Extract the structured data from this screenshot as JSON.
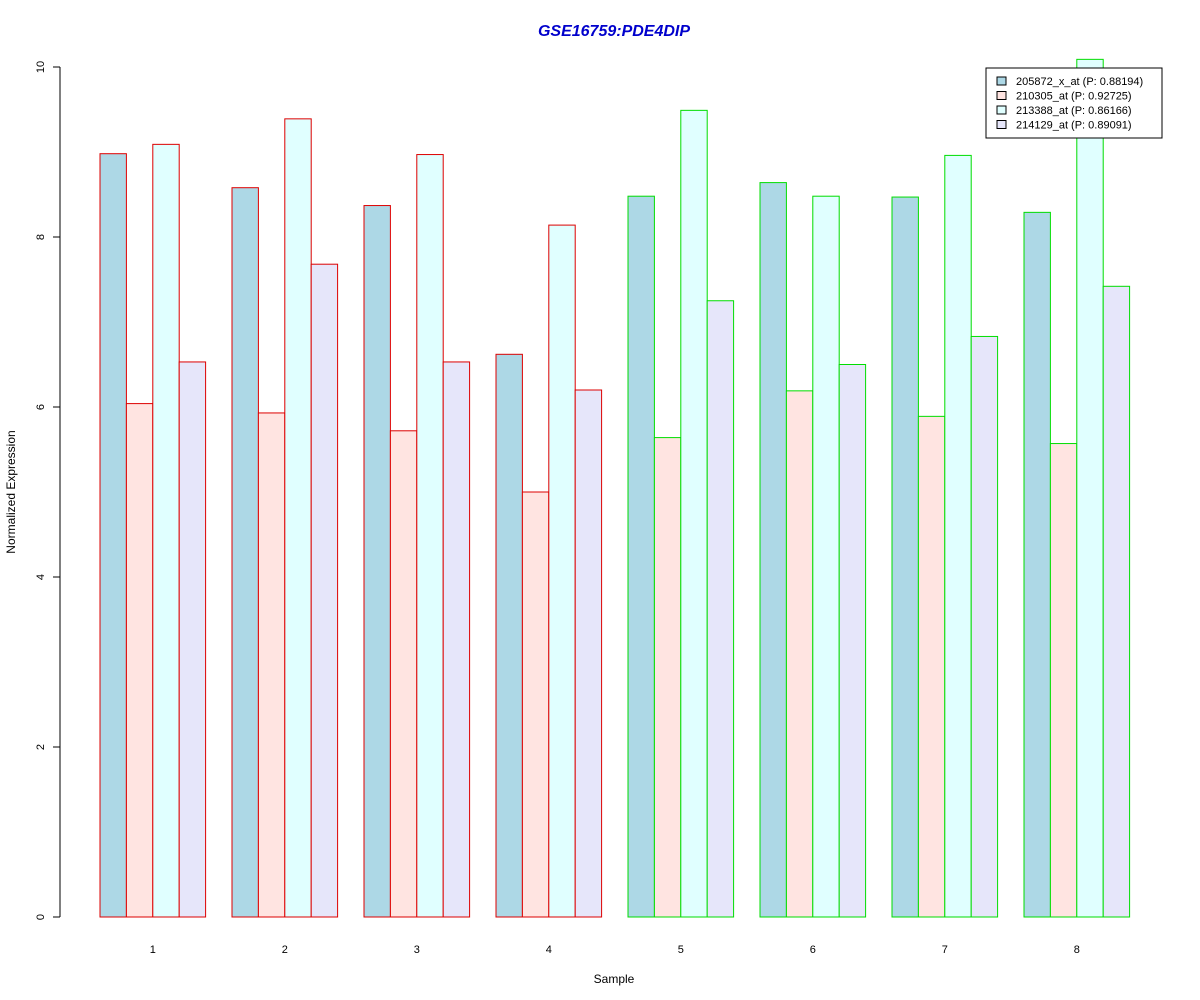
{
  "chart_data": {
    "type": "bar",
    "title": "GSE16759:PDE4DIP",
    "xlabel": "Sample",
    "ylabel": "Normalized Expression",
    "categories": [
      "1",
      "2",
      "3",
      "4",
      "5",
      "6",
      "7",
      "8"
    ],
    "ylim": [
      0,
      10
    ],
    "yticks": [
      "0",
      "2",
      "4",
      "6",
      "8",
      "10"
    ],
    "group_outline_colors": [
      "#dd0000",
      "#dd0000",
      "#dd0000",
      "#dd0000",
      "#00dd00",
      "#00dd00",
      "#00dd00",
      "#00dd00"
    ],
    "series": [
      {
        "name": "205872_x_at (P: 0.88194)",
        "color": "#add8e6",
        "values": [
          8.98,
          8.58,
          8.37,
          6.62,
          8.48,
          8.64,
          8.47,
          8.29
        ]
      },
      {
        "name": "210305_at (P: 0.92725)",
        "color": "#ffe4e1",
        "values": [
          6.04,
          5.93,
          5.72,
          5.0,
          5.64,
          6.19,
          5.89,
          5.57
        ]
      },
      {
        "name": "213388_at (P: 0.86166)",
        "color": "#e0ffff",
        "values": [
          9.09,
          9.39,
          8.97,
          8.14,
          9.49,
          8.48,
          8.96,
          10.09
        ]
      },
      {
        "name": "214129_at (P: 0.89091)",
        "color": "#e6e6fa",
        "values": [
          6.53,
          7.68,
          6.53,
          6.2,
          7.25,
          6.5,
          6.83,
          7.42
        ]
      }
    ],
    "grid": false,
    "legend_position": "top-right"
  }
}
